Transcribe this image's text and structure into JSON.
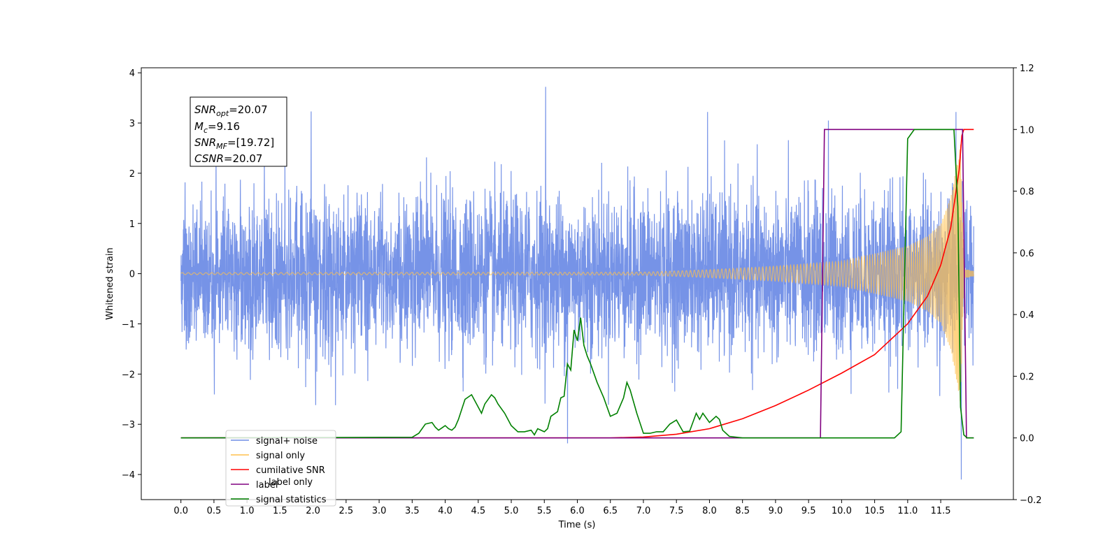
{
  "chart_data": {
    "type": "line",
    "xlabel": "Time (s)",
    "ylabel_left": "Whitened strain",
    "xlim": [
      -0.6,
      12.6
    ],
    "ylim_left": [
      -4.5,
      4.1
    ],
    "ylim_right": [
      -0.2,
      1.2
    ],
    "x_ticks": [
      0.0,
      0.5,
      1.0,
      1.5,
      2.0,
      2.5,
      3.0,
      3.5,
      4.0,
      4.5,
      5.0,
      5.5,
      6.0,
      6.5,
      7.0,
      7.5,
      8.0,
      8.5,
      9.0,
      9.5,
      10.0,
      10.5,
      11.0,
      11.5
    ],
    "x_tick_labels": [
      "0.0",
      "0.5",
      "1.0",
      "1.5",
      "2.0",
      "2.5",
      "3.0",
      "3.5",
      "4.0",
      "4.5",
      "5.0",
      "5.5",
      "6.0",
      "6.5",
      "7.0",
      "7.5",
      "8.0",
      "8.5",
      "9.0",
      "9.5",
      "10.0",
      "10.5",
      "11.0",
      "11.5"
    ],
    "y_ticks_left": [
      -4,
      -3,
      -2,
      -1,
      0,
      1,
      2,
      3,
      4
    ],
    "y_tick_labels_left": [
      "−4",
      "−3",
      "−2",
      "−1",
      "0",
      "1",
      "2",
      "3",
      "4"
    ],
    "y_ticks_right": [
      -0.2,
      0.0,
      0.2,
      0.4,
      0.6,
      0.8,
      1.0,
      1.2
    ],
    "y_tick_labels_right": [
      "−0.2",
      "0.0",
      "0.2",
      "0.4",
      "0.6",
      "0.8",
      "1.0",
      "1.2"
    ],
    "stats_box": {
      "snr_opt": {
        "base": "SNR",
        "sub": "opt",
        "value": "=20.07"
      },
      "mc": {
        "base": "M",
        "sub": "c",
        "value": "=9.16"
      },
      "snr_mf": {
        "base": "SNR",
        "sub": "MF",
        "value": "=[19.72]"
      },
      "csnr": {
        "base": "CSNR",
        "sub": "",
        "value": "=20.07"
      }
    },
    "legend": {
      "placement": "lower-left",
      "entries": [
        {
          "label": "signal+ noise",
          "color": "#6f8de6"
        },
        {
          "label": "signal only",
          "color": "#ffc04d"
        },
        {
          "label": "cumilative SNR",
          "color": "#ff0000"
        },
        {
          "label": "label",
          "color": "#800080"
        },
        {
          "label": "signal statistics",
          "color": "#008000"
        }
      ],
      "ghost_label": "label only"
    },
    "series": [
      {
        "name": "signal+ noise",
        "axis": "left",
        "color": "#6f8de6",
        "kind": "noise",
        "x_range": [
          0.0,
          12.0
        ],
        "std": 0.78,
        "peaks": [
          [
            5.52,
            3.72
          ],
          [
            5.85,
            -3.38
          ],
          [
            11.81,
            -4.1
          ],
          [
            11.73,
            3.22
          ],
          [
            7.97,
            3.22
          ],
          [
            9.8,
            3.05
          ],
          [
            1.97,
            3.23
          ]
        ]
      },
      {
        "name": "signal only",
        "axis": "left",
        "color": "#ffc04d",
        "kind": "chirp",
        "x_range": [
          0.0,
          12.0
        ],
        "merger": 11.85,
        "envelope": [
          [
            0.0,
            0.02
          ],
          [
            7.0,
            0.03
          ],
          [
            8.0,
            0.08
          ],
          [
            9.0,
            0.15
          ],
          [
            10.0,
            0.25
          ],
          [
            10.5,
            0.4
          ],
          [
            11.0,
            0.55
          ],
          [
            11.3,
            0.75
          ],
          [
            11.5,
            1.0
          ],
          [
            11.65,
            1.5
          ],
          [
            11.75,
            2.2
          ],
          [
            11.8,
            2.6
          ],
          [
            11.85,
            0.1
          ],
          [
            12.0,
            0.05
          ]
        ]
      },
      {
        "name": "cumilative SNR",
        "axis": "right",
        "color": "#ff0000",
        "x": [
          0.0,
          6.5,
          7.0,
          7.5,
          8.0,
          8.5,
          9.0,
          9.5,
          10.0,
          10.5,
          11.0,
          11.3,
          11.5,
          11.65,
          11.78,
          11.82,
          11.85,
          12.0
        ],
        "y": [
          0.0,
          0.0,
          0.003,
          0.012,
          0.03,
          0.062,
          0.105,
          0.155,
          0.21,
          0.27,
          0.37,
          0.46,
          0.56,
          0.68,
          0.87,
          0.98,
          1.0,
          1.0
        ]
      },
      {
        "name": "label",
        "axis": "right",
        "color": "#800080",
        "x": [
          0.0,
          9.68,
          9.74,
          11.83,
          11.89,
          12.0
        ],
        "y": [
          0.0,
          0.0,
          1.0,
          1.0,
          0.0,
          0.0
        ]
      },
      {
        "name": "signal statistics",
        "axis": "right",
        "color": "#008000",
        "x": [
          0.0,
          3.5,
          3.6,
          3.7,
          3.8,
          3.85,
          3.9,
          4.0,
          4.05,
          4.1,
          4.15,
          4.2,
          4.3,
          4.4,
          4.5,
          4.55,
          4.6,
          4.7,
          4.75,
          4.8,
          4.9,
          5.0,
          5.1,
          5.2,
          5.3,
          5.35,
          5.4,
          5.5,
          5.55,
          5.6,
          5.7,
          5.75,
          5.8,
          5.85,
          5.9,
          5.95,
          6.0,
          6.05,
          6.1,
          6.15,
          6.2,
          6.3,
          6.4,
          6.5,
          6.6,
          6.7,
          6.75,
          6.8,
          6.9,
          7.0,
          7.1,
          7.2,
          7.3,
          7.4,
          7.5,
          7.6,
          7.7,
          7.8,
          7.85,
          7.9,
          8.0,
          8.1,
          8.15,
          8.2,
          8.3,
          8.5,
          9.0,
          10.8,
          10.9,
          11.0,
          11.1,
          11.2,
          11.7,
          11.76,
          11.8,
          11.85,
          11.9,
          12.0
        ],
        "y": [
          0.0,
          0.002,
          0.015,
          0.045,
          0.05,
          0.035,
          0.025,
          0.04,
          0.03,
          0.025,
          0.035,
          0.06,
          0.125,
          0.14,
          0.1,
          0.08,
          0.11,
          0.14,
          0.13,
          0.11,
          0.08,
          0.04,
          0.02,
          0.02,
          0.025,
          0.01,
          0.03,
          0.02,
          0.03,
          0.07,
          0.085,
          0.13,
          0.135,
          0.24,
          0.22,
          0.35,
          0.315,
          0.39,
          0.3,
          0.265,
          0.24,
          0.18,
          0.13,
          0.07,
          0.08,
          0.13,
          0.18,
          0.155,
          0.08,
          0.015,
          0.015,
          0.02,
          0.02,
          0.045,
          0.058,
          0.02,
          0.022,
          0.08,
          0.06,
          0.08,
          0.05,
          0.07,
          0.06,
          0.025,
          0.005,
          0.0,
          0.0,
          0.0,
          0.02,
          0.97,
          1.0,
          1.0,
          1.0,
          0.75,
          0.1,
          0.01,
          0.0,
          0.0
        ]
      }
    ]
  }
}
